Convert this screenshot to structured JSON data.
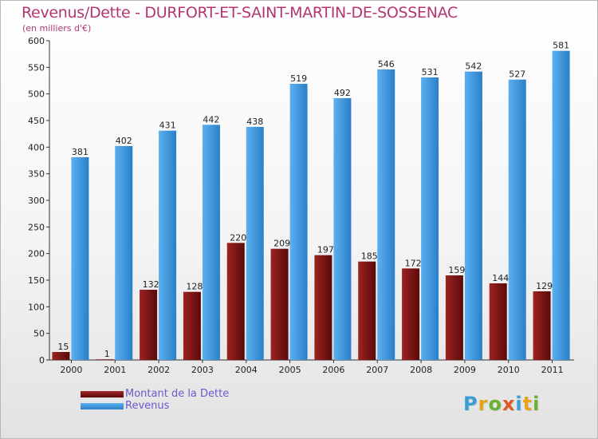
{
  "chart_data": {
    "type": "bar",
    "title": "Revenus/Dette - DURFORT-ET-SAINT-MARTIN-DE-SOSSENAC",
    "subtitle": "(en milliers d'€)",
    "categories": [
      "2000",
      "2001",
      "2002",
      "2003",
      "2004",
      "2005",
      "2006",
      "2007",
      "2008",
      "2009",
      "2010",
      "2011"
    ],
    "series": [
      {
        "name": "Montant de la Dette",
        "color": "#8b1a1a",
        "values": [
          15,
          1,
          132,
          128,
          220,
          209,
          197,
          185,
          172,
          159,
          144,
          129
        ]
      },
      {
        "name": "Revenus",
        "color": "#3f95dc",
        "values": [
          381,
          402,
          431,
          442,
          438,
          519,
          492,
          546,
          531,
          542,
          527,
          581
        ]
      }
    ],
    "ylim": [
      0,
      600
    ],
    "yticks": [
      0,
      50,
      100,
      150,
      200,
      250,
      300,
      350,
      400,
      450,
      500,
      550,
      600
    ],
    "grid": false,
    "legend_position": "bottom-left"
  },
  "logo": {
    "text": "Proxiti",
    "letters": [
      {
        "ch": "P",
        "color": "#3a9fd6"
      },
      {
        "ch": "r",
        "color": "#e6a21a"
      },
      {
        "ch": "o",
        "color": "#6ab034"
      },
      {
        "ch": "x",
        "color": "#e05a26"
      },
      {
        "ch": "i",
        "color": "#3a9fd6"
      },
      {
        "ch": "t",
        "color": "#e6a21a"
      },
      {
        "ch": "i",
        "color": "#6ab034"
      }
    ]
  }
}
